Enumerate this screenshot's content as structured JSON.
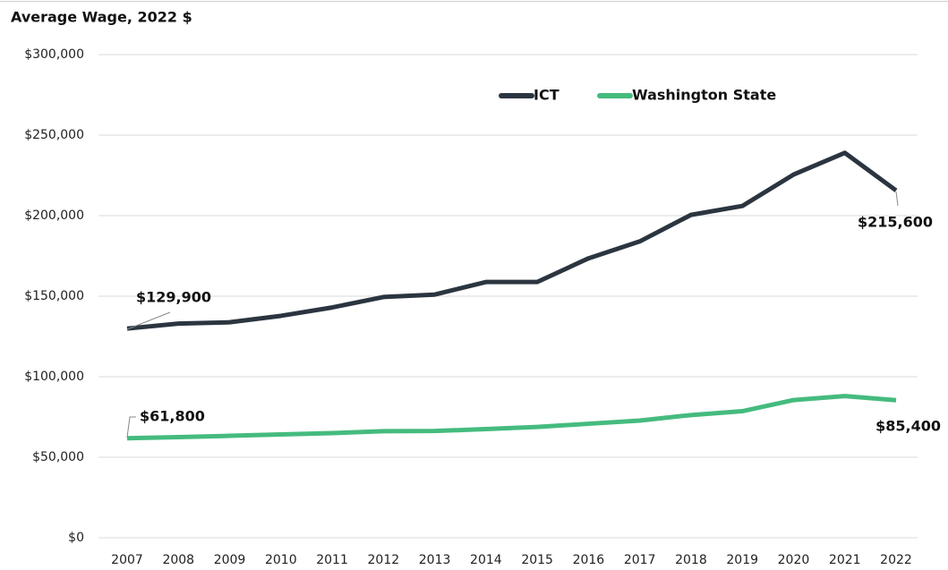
{
  "chart_data": {
    "type": "line",
    "title": "Average Wage, 2022 $",
    "categories": [
      "2007",
      "2008",
      "2009",
      "2010",
      "2011",
      "2012",
      "2013",
      "2014",
      "2015",
      "2016",
      "2017",
      "2018",
      "2019",
      "2020",
      "2021",
      "2022"
    ],
    "series": [
      {
        "name": "ICT",
        "color": "#2b3540",
        "values": [
          129900,
          133000,
          133800,
          137800,
          143000,
          149500,
          151000,
          158800,
          158800,
          173500,
          184000,
          200500,
          206000,
          225500,
          239000,
          215600
        ],
        "value_labels": [
          "$129,900",
          null,
          null,
          null,
          null,
          null,
          null,
          null,
          null,
          null,
          null,
          null,
          null,
          null,
          null,
          "$215,600"
        ]
      },
      {
        "name": "Washington State",
        "color": "#45bb7e",
        "values": [
          61800,
          62500,
          63300,
          64200,
          65000,
          66200,
          66300,
          67500,
          68800,
          70800,
          72800,
          76200,
          78600,
          85500,
          88000,
          85400
        ],
        "value_labels": [
          "$61,800",
          null,
          null,
          null,
          null,
          null,
          null,
          null,
          null,
          null,
          null,
          null,
          null,
          null,
          null,
          "$85,400"
        ]
      }
    ],
    "ylim": [
      0,
      300000
    ],
    "yticks": [
      {
        "value": 0,
        "label": "$0"
      },
      {
        "value": 50000,
        "label": "$50,000"
      },
      {
        "value": 100000,
        "label": "$100,000"
      },
      {
        "value": 150000,
        "label": "$150,000"
      },
      {
        "value": 200000,
        "label": "$200,000"
      },
      {
        "value": 250000,
        "label": "$250,000"
      },
      {
        "value": 300000,
        "label": "$300,000"
      }
    ],
    "grid": true,
    "legend": "top"
  }
}
